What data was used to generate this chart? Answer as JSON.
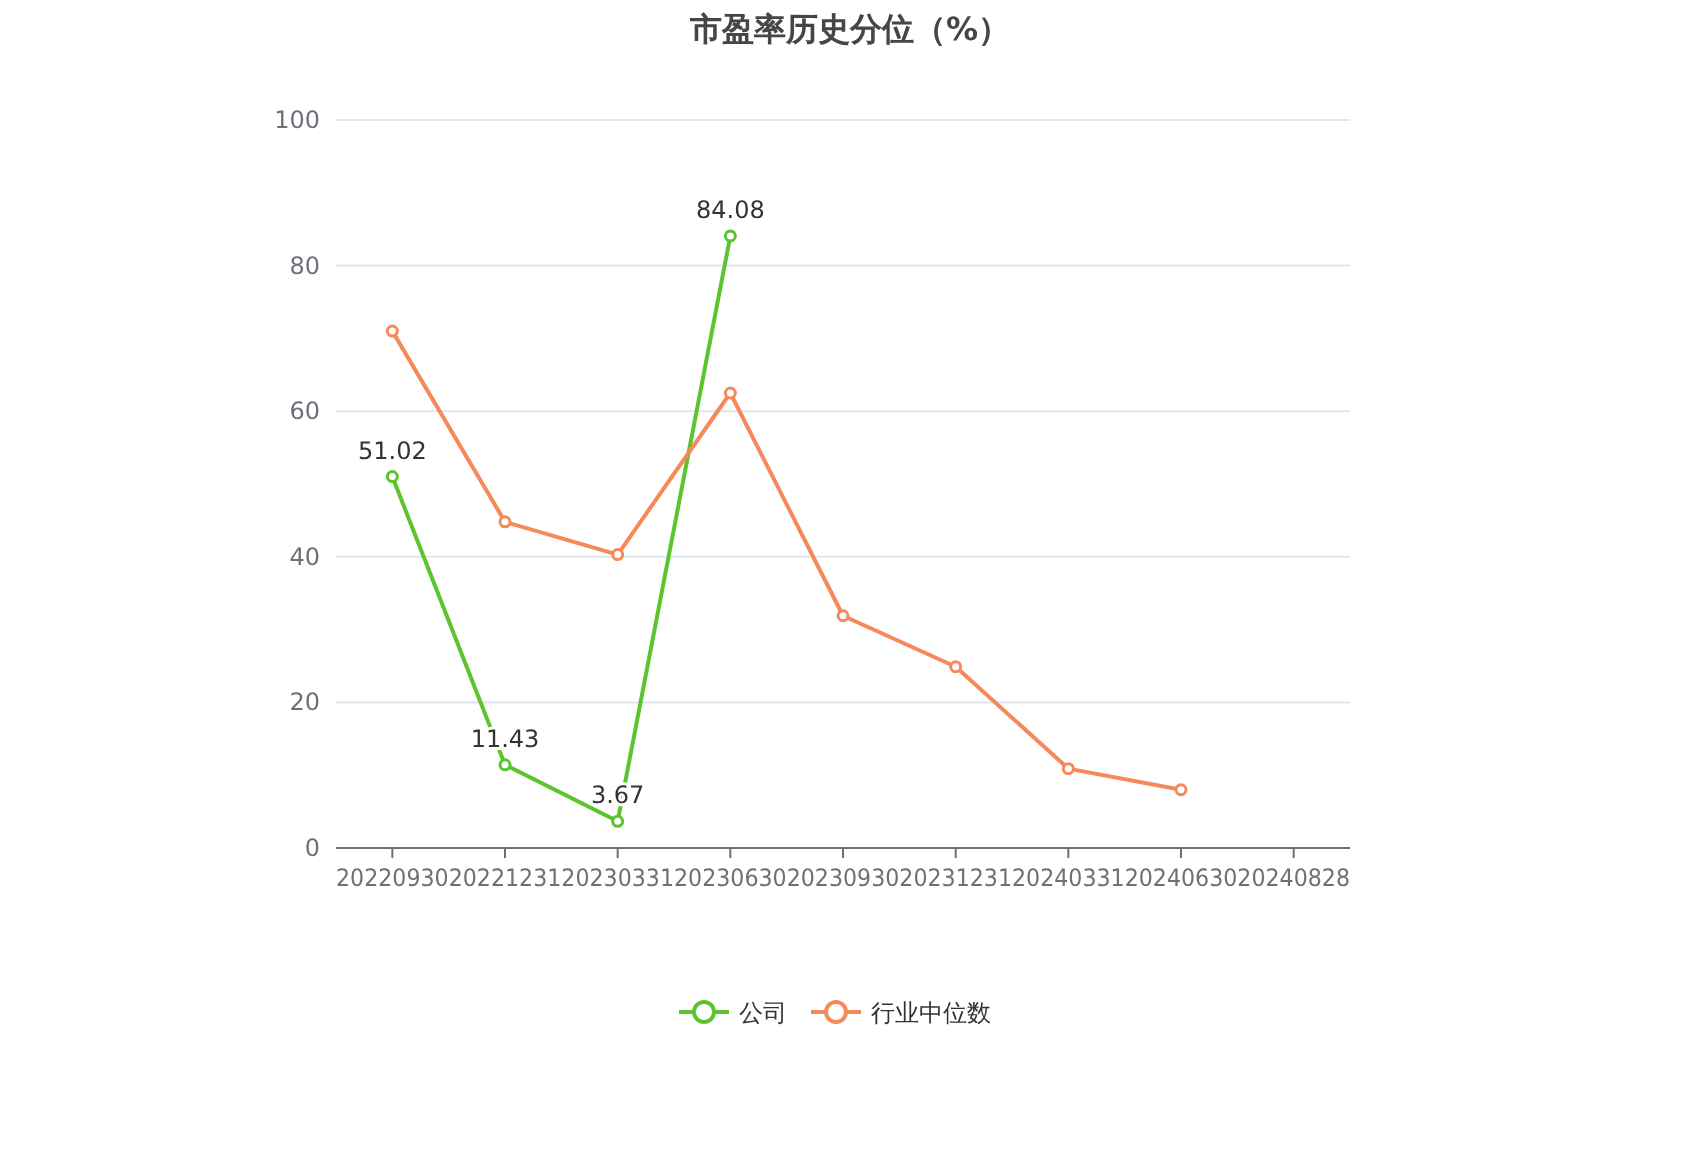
{
  "chart_data": {
    "type": "line",
    "title": "市盈率历史分位（%）",
    "categories": [
      "20220930",
      "20221231",
      "20230331",
      "20230630",
      "20230930",
      "20231231",
      "20240331",
      "20240630",
      "20240828"
    ],
    "series": [
      {
        "name": "公司",
        "color": "#5cc42f",
        "values": [
          51.02,
          11.43,
          3.67,
          84.08,
          null,
          null,
          null,
          null,
          null
        ],
        "value_labels": [
          "51.02",
          "11.43",
          "3.67",
          "84.08",
          null,
          null,
          null,
          null,
          null
        ]
      },
      {
        "name": "行业中位数",
        "color": "#f5895a",
        "values": [
          71.0,
          44.8,
          40.3,
          62.5,
          31.9,
          24.9,
          10.9,
          8.0,
          null
        ]
      }
    ],
    "ylim": [
      0,
      100
    ],
    "yticks": [
      0,
      20,
      40,
      60,
      80,
      100
    ],
    "grid": "y",
    "legend": "bottom",
    "marker": "circle",
    "line_style": "solid"
  }
}
